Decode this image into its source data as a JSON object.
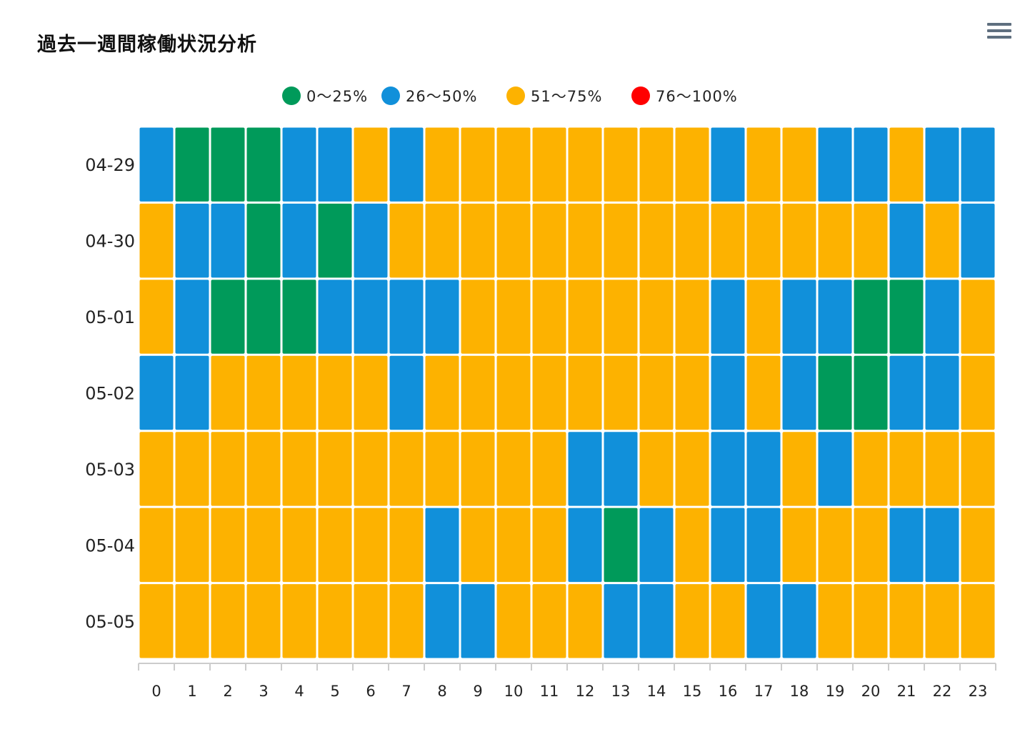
{
  "title": "過去一週間稼働状況分析",
  "menu_icon": "hamburger-menu-icon",
  "colors": {
    "green": "#009a5a",
    "blue": "#1190da",
    "orange": "#fdb200",
    "red": "#ff0000"
  },
  "legend": [
    {
      "label": "0〜25%",
      "color": "#009a5a"
    },
    {
      "label": "26〜50%",
      "color": "#1190da"
    },
    {
      "label": "51〜75%",
      "color": "#fdb200"
    },
    {
      "label": "76〜100%",
      "color": "#ff0000"
    }
  ],
  "chart_data": {
    "type": "heatmap",
    "title": "過去一週間稼働状況分析",
    "x_categories": [
      "0",
      "1",
      "2",
      "3",
      "4",
      "5",
      "6",
      "7",
      "8",
      "9",
      "10",
      "11",
      "12",
      "13",
      "14",
      "15",
      "16",
      "17",
      "18",
      "19",
      "20",
      "21",
      "22",
      "23"
    ],
    "y_categories": [
      "04-29",
      "04-30",
      "05-01",
      "05-02",
      "05-03",
      "05-04",
      "05-05"
    ],
    "bins": [
      "0〜25%",
      "26〜50%",
      "51〜75%",
      "76〜100%"
    ],
    "legend_position": "top-center",
    "values": [
      [
        1,
        0,
        0,
        0,
        1,
        1,
        2,
        1,
        2,
        2,
        2,
        2,
        2,
        2,
        2,
        2,
        1,
        2,
        2,
        1,
        1,
        2,
        1,
        1
      ],
      [
        2,
        1,
        1,
        0,
        1,
        0,
        1,
        2,
        2,
        2,
        2,
        2,
        2,
        2,
        2,
        2,
        2,
        2,
        2,
        2,
        2,
        1,
        2,
        1
      ],
      [
        2,
        1,
        0,
        0,
        0,
        1,
        1,
        1,
        1,
        2,
        2,
        2,
        2,
        2,
        2,
        2,
        1,
        2,
        1,
        1,
        0,
        0,
        1,
        2
      ],
      [
        1,
        1,
        2,
        2,
        2,
        2,
        2,
        1,
        2,
        2,
        2,
        2,
        2,
        2,
        2,
        2,
        1,
        2,
        1,
        0,
        0,
        1,
        1,
        2
      ],
      [
        2,
        2,
        2,
        2,
        2,
        2,
        2,
        2,
        2,
        2,
        2,
        2,
        1,
        1,
        2,
        2,
        1,
        1,
        2,
        1,
        2,
        2,
        2,
        2
      ],
      [
        2,
        2,
        2,
        2,
        2,
        2,
        2,
        2,
        1,
        2,
        2,
        2,
        1,
        0,
        1,
        2,
        1,
        1,
        2,
        2,
        2,
        1,
        1,
        2
      ],
      [
        2,
        2,
        2,
        2,
        2,
        2,
        2,
        2,
        1,
        1,
        2,
        2,
        2,
        1,
        1,
        2,
        2,
        1,
        1,
        2,
        2,
        2,
        2,
        2
      ]
    ]
  }
}
